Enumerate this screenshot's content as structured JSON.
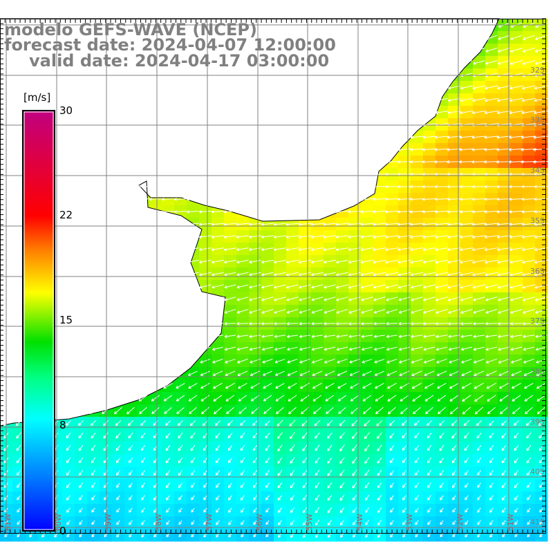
{
  "header": {
    "model": "modelo GEFS-WAVE (NCEP)",
    "forecast": "forecast date: 2024-04-07 12:00:00",
    "valid": "valid date: 2024-04-17 03:00:00"
  },
  "colorbar": {
    "unit": "[m/s]",
    "ticks": [
      "30",
      "22",
      "15",
      "8",
      "0"
    ],
    "tick_values": [
      30,
      22,
      15,
      8,
      0
    ],
    "range": [
      0,
      30
    ],
    "colors": [
      "#0000ff",
      "#0080ff",
      "#00ffff",
      "#00ff80",
      "#00e000",
      "#ffff00",
      "#ff8000",
      "#ff0000",
      "#c00080"
    ]
  },
  "axes": {
    "lat_labels": [
      "32S",
      "33S",
      "34S",
      "35S",
      "36S",
      "37S",
      "38S",
      "39S",
      "40S",
      "41S"
    ],
    "lon_labels": [
      "61W",
      "60W",
      "59W",
      "58W",
      "57W",
      "56W",
      "55W",
      "54W",
      "53W",
      "52W",
      "51W"
    ]
  },
  "field": {
    "variable": "wind speed",
    "land_color": "#ffffff",
    "grid_color": "#808080",
    "arrow_color": "#ffffff"
  }
}
